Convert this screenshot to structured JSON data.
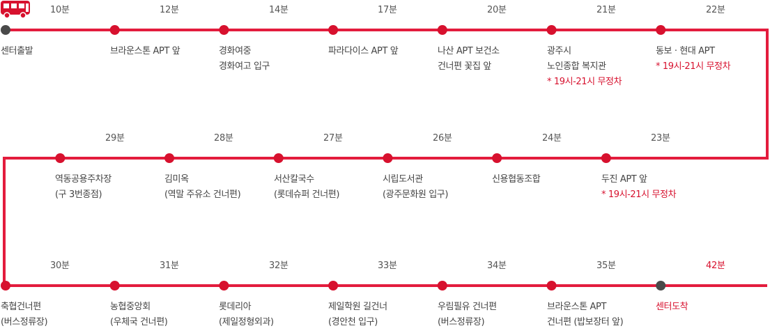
{
  "colors": {
    "route": "#e31c3d",
    "stop": "#d7112e",
    "terminal": "#4a4a4a",
    "note": "#d7112e"
  },
  "icons": {
    "bus": "bus-icon"
  },
  "rows": [
    {
      "stops": [
        {
          "name": [
            "센터출발"
          ],
          "note": "",
          "time": "",
          "terminal": true
        },
        {
          "name": [
            "브라운스톤 APT 앞"
          ],
          "note": "",
          "time": "10분"
        },
        {
          "name": [
            "경화여중",
            "경화여고 입구"
          ],
          "note": "",
          "time": "12분"
        },
        {
          "name": [
            "파라다이스 APT 앞"
          ],
          "note": "",
          "time": "14분"
        },
        {
          "name": [
            "나산 APT 보건소",
            "건너편 꽃집 앞"
          ],
          "note": "",
          "time": "17분"
        },
        {
          "name": [
            "광주시",
            "노인종합 복지관"
          ],
          "note": "* 19시-21시 무정차",
          "time": "20분"
        },
        {
          "name": [
            "동보 · 현대 APT"
          ],
          "note": "* 19시-21시 무정차",
          "time": "21분"
        }
      ],
      "end_time": "22분"
    },
    {
      "stops": [
        {
          "name": [
            "두진 APT 앞"
          ],
          "note": "* 19시-21시 무정차",
          "time": "23분"
        },
        {
          "name": [
            "신용협동조합"
          ],
          "note": "",
          "time": "24분"
        },
        {
          "name": [
            "시립도서관",
            "(광주문화원 입구)"
          ],
          "note": "",
          "time": "26분"
        },
        {
          "name": [
            "서산칼국수",
            "(롯데슈퍼 건너편)"
          ],
          "note": "",
          "time": "27분"
        },
        {
          "name": [
            "김미옥",
            "(역말 주유소 건너편)"
          ],
          "note": "",
          "time": "28분"
        },
        {
          "name": [
            "역동공용주차장",
            "(구 3번종점)"
          ],
          "note": "",
          "time": "29분"
        }
      ]
    },
    {
      "stops": [
        {
          "name": [
            "축협건너편",
            "(버스정류장)"
          ],
          "note": "",
          "time": ""
        },
        {
          "name": [
            "농협중앙회",
            "(우체국 건너편)"
          ],
          "note": "",
          "time": "30분"
        },
        {
          "name": [
            "롯데리아",
            "(제일정형외과)"
          ],
          "note": "",
          "time": "31분"
        },
        {
          "name": [
            "제일학원 길건너",
            "(경안천 입구)"
          ],
          "note": "",
          "time": "32분"
        },
        {
          "name": [
            "우림필유 건너편",
            "(버스정류장)"
          ],
          "note": "",
          "time": "33분"
        },
        {
          "name": [
            "브라운스톤 APT",
            "건너편 (밥보장터 앞)"
          ],
          "note": "",
          "time": "34분"
        },
        {
          "name": [
            "센터도착"
          ],
          "note": "",
          "time": "35분",
          "terminal": true,
          "highlight": true
        }
      ],
      "end_time": "42분"
    }
  ]
}
